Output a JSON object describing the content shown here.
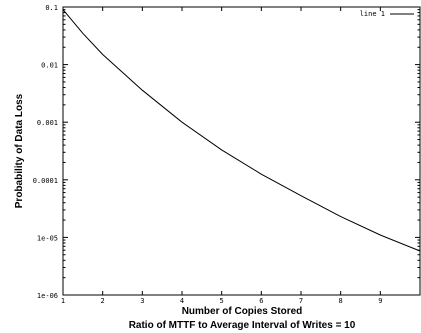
{
  "chart_data": {
    "type": "line",
    "xlabel": "Number of Copies Stored",
    "subtitle": "Ratio of MTTF to Average Interval of Writes = 10",
    "ylabel": "Probability of Data Loss",
    "xlim": [
      1,
      10
    ],
    "ylim": [
      1e-06,
      0.1
    ],
    "yscale": "log",
    "x_ticks": [
      "1",
      "2",
      "3",
      "4",
      "5",
      "6",
      "7",
      "8",
      "9"
    ],
    "y_ticks": [
      {
        "value": 0.1,
        "label": "0.1"
      },
      {
        "value": 0.01,
        "label": "0.01"
      },
      {
        "value": 0.001,
        "label": "0.001"
      },
      {
        "value": 0.0001,
        "label": "0.0001"
      },
      {
        "value": 1e-05,
        "label": "1e-05"
      },
      {
        "value": 1e-06,
        "label": "1e-06"
      }
    ],
    "grid": false,
    "legend_position": "top-right",
    "series": [
      {
        "name": "line 1",
        "color": "#000000",
        "x": [
          1,
          1.5,
          2,
          3,
          4,
          5,
          6,
          7,
          8,
          9,
          10
        ],
        "y": [
          0.09,
          0.035,
          0.015,
          0.0036,
          0.001,
          0.00033,
          0.000125,
          5.3e-05,
          2.3e-05,
          1.1e-05,
          5.8e-06
        ]
      }
    ]
  }
}
